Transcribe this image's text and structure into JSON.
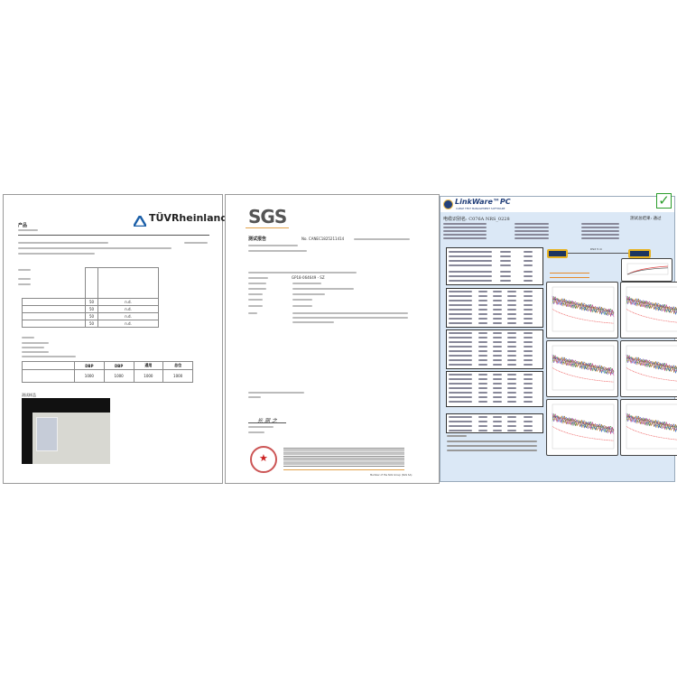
{
  "tuv": {
    "logo_text": "TÜVRheinland",
    "logo_reg": "®",
    "header_title": "产品",
    "table_values": [
      "50",
      "50",
      "50",
      "50"
    ],
    "table_results": [
      "n.d.",
      "n.d.",
      "n.d.",
      "n.d."
    ],
    "summary_headers": [
      "DBP",
      "DBP",
      "通用",
      "总位"
    ],
    "summary_values": [
      "1000",
      "1000",
      "1000",
      "1000"
    ],
    "photo_caption": "测试样品"
  },
  "sgs": {
    "logo_text": "SGS",
    "report_title": "测试报告",
    "report_no": "No. CANEC1825211414",
    "job_no": "GP18-064649 - SZ",
    "signature": "光 洞 之",
    "footer_note": "Member of the SGS Group (SGS SA)"
  },
  "linkware": {
    "brand": "LinkWare",
    "brand_suffix": "PC",
    "tagline": "CABLE TEST MANAGEMENT SOFTWARE",
    "cable_id": "电缆识别名: C076A  NRS_0228",
    "overall_result": "测试总结果: 通过",
    "status_color": "#2a9d2a",
    "status_icon": "checkmark-icon",
    "length_label": "DSX 5 m",
    "chart_count": 8
  }
}
